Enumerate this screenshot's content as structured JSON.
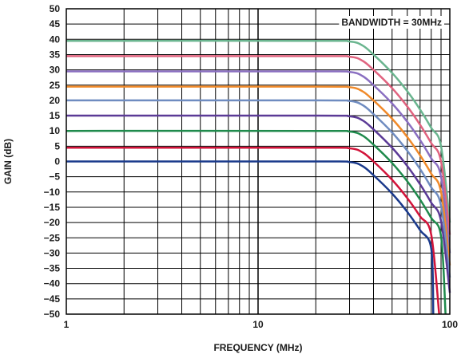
{
  "chart_data": {
    "type": "line",
    "xlabel": "FREQUENCY (MHz)",
    "ylabel": "GAIN (dB)",
    "x_scale": "log",
    "xlim": [
      1,
      100
    ],
    "ylim": [
      -50,
      50
    ],
    "x_ticks": [
      1,
      10,
      100
    ],
    "x_tick_labels": [
      "1",
      "10",
      "100"
    ],
    "y_ticks": [
      50,
      45,
      40,
      35,
      30,
      25,
      20,
      15,
      10,
      5,
      0,
      -5,
      -10,
      -15,
      -20,
      -25,
      -30,
      -35,
      -40,
      -45,
      -50
    ],
    "y_tick_labels": [
      "50",
      "45",
      "40",
      "35",
      "30",
      "25",
      "20",
      "15",
      "10",
      "5",
      "0",
      "−10",
      "−15",
      "−20",
      "−25",
      "−30",
      "−35",
      "−40",
      "−45",
      "−50"
    ],
    "y_tick_labels_full": [
      "50",
      "45",
      "40",
      "35",
      "30",
      "25",
      "20",
      "15",
      "10",
      "5",
      "0",
      "−5",
      "−10",
      "−15",
      "−20",
      "−25",
      "−30",
      "−35",
      "−40",
      "−45",
      "−50"
    ],
    "grid": true,
    "annotation": "BANDWIDTH = 30MHz",
    "series": [
      {
        "color": "#6ab58f",
        "x": [
          1,
          20,
          30,
          35,
          40,
          50,
          60,
          70,
          80,
          90,
          100
        ],
        "y": [
          39.5,
          39.5,
          39.3,
          38,
          35,
          29,
          23,
          17,
          11,
          5,
          -20
        ]
      },
      {
        "color": "#e0637f",
        "x": [
          1,
          20,
          30,
          35,
          40,
          50,
          60,
          70,
          80,
          90,
          100
        ],
        "y": [
          34.5,
          34.5,
          34.3,
          33,
          30,
          24,
          18,
          12,
          6,
          0,
          -24
        ]
      },
      {
        "color": "#8a6fc1",
        "x": [
          1,
          20,
          30,
          35,
          40,
          50,
          60,
          70,
          80,
          90,
          100
        ],
        "y": [
          29.5,
          29.5,
          29.3,
          28,
          25,
          19,
          13,
          7,
          1,
          -5,
          -30
        ]
      },
      {
        "color": "#f08a2a",
        "x": [
          1,
          20,
          30,
          35,
          40,
          50,
          60,
          70,
          80,
          90,
          100
        ],
        "y": [
          24.5,
          24.5,
          24.3,
          23,
          20,
          14,
          8,
          2,
          -4,
          -10,
          -34
        ]
      },
      {
        "color": "#6f8cc0",
        "x": [
          1,
          20,
          30,
          35,
          40,
          50,
          60,
          70,
          80,
          90,
          100
        ],
        "y": [
          20,
          20,
          19.8,
          18.5,
          15.5,
          9.5,
          3.5,
          -2.5,
          -8.5,
          -14.5,
          -38
        ]
      },
      {
        "color": "#5b3a96",
        "x": [
          1,
          20,
          30,
          35,
          40,
          50,
          60,
          70,
          80,
          90,
          100
        ],
        "y": [
          15,
          15,
          14.8,
          13.5,
          10.5,
          4.5,
          -1.5,
          -7.5,
          -13.5,
          -19.5,
          -43
        ]
      },
      {
        "color": "#1f8a4c",
        "x": [
          1,
          20,
          30,
          35,
          40,
          50,
          60,
          70,
          80,
          90,
          95
        ],
        "y": [
          10,
          10,
          9.8,
          8.5,
          5.5,
          -0.5,
          -6.5,
          -12.5,
          -18.5,
          -24.5,
          -50
        ]
      },
      {
        "color": "#d2143a",
        "x": [
          1,
          20,
          30,
          35,
          40,
          50,
          60,
          70,
          80,
          88
        ],
        "y": [
          4.5,
          4.5,
          4.3,
          3,
          0,
          -6,
          -12,
          -18,
          -24,
          -50
        ]
      },
      {
        "color": "#1a3a8c",
        "x": [
          1,
          20,
          30,
          35,
          40,
          50,
          60,
          70,
          80,
          82
        ],
        "y": [
          0,
          0,
          -0.2,
          -1.5,
          -4.5,
          -10.5,
          -16.5,
          -22.5,
          -28.5,
          -50
        ]
      }
    ]
  }
}
